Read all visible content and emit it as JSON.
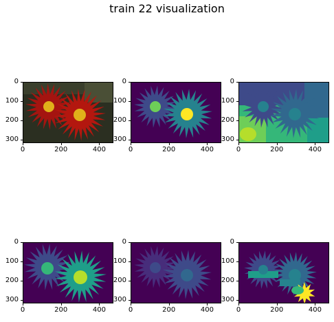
{
  "title": "train 22 visualization",
  "axes": {
    "yticks": [
      "0",
      "100",
      "200",
      "300"
    ],
    "xticks": [
      "0",
      "200",
      "400"
    ]
  },
  "colors": {
    "bg": "#440154",
    "c1": "#3e4a89",
    "c2": "#31688e",
    "c3": "#26828e",
    "c4": "#1f9e89",
    "c5": "#35b779",
    "c6": "#6ece58",
    "c7": "#b5de2b",
    "c8": "#fde725",
    "photo_bg": "#2b2f21",
    "petal_red": "#a41410",
    "center_yellow": "#e0b01a"
  },
  "panels": [
    {
      "name": "panel-photo",
      "style": "photo"
    },
    {
      "name": "panel-mask-2",
      "style": "mask_a"
    },
    {
      "name": "panel-mask-3",
      "style": "mask_b"
    },
    {
      "name": "panel-mask-4",
      "style": "mask_c"
    },
    {
      "name": "panel-mask-5",
      "style": "mask_d"
    },
    {
      "name": "panel-mask-6",
      "style": "mask_e"
    }
  ]
}
